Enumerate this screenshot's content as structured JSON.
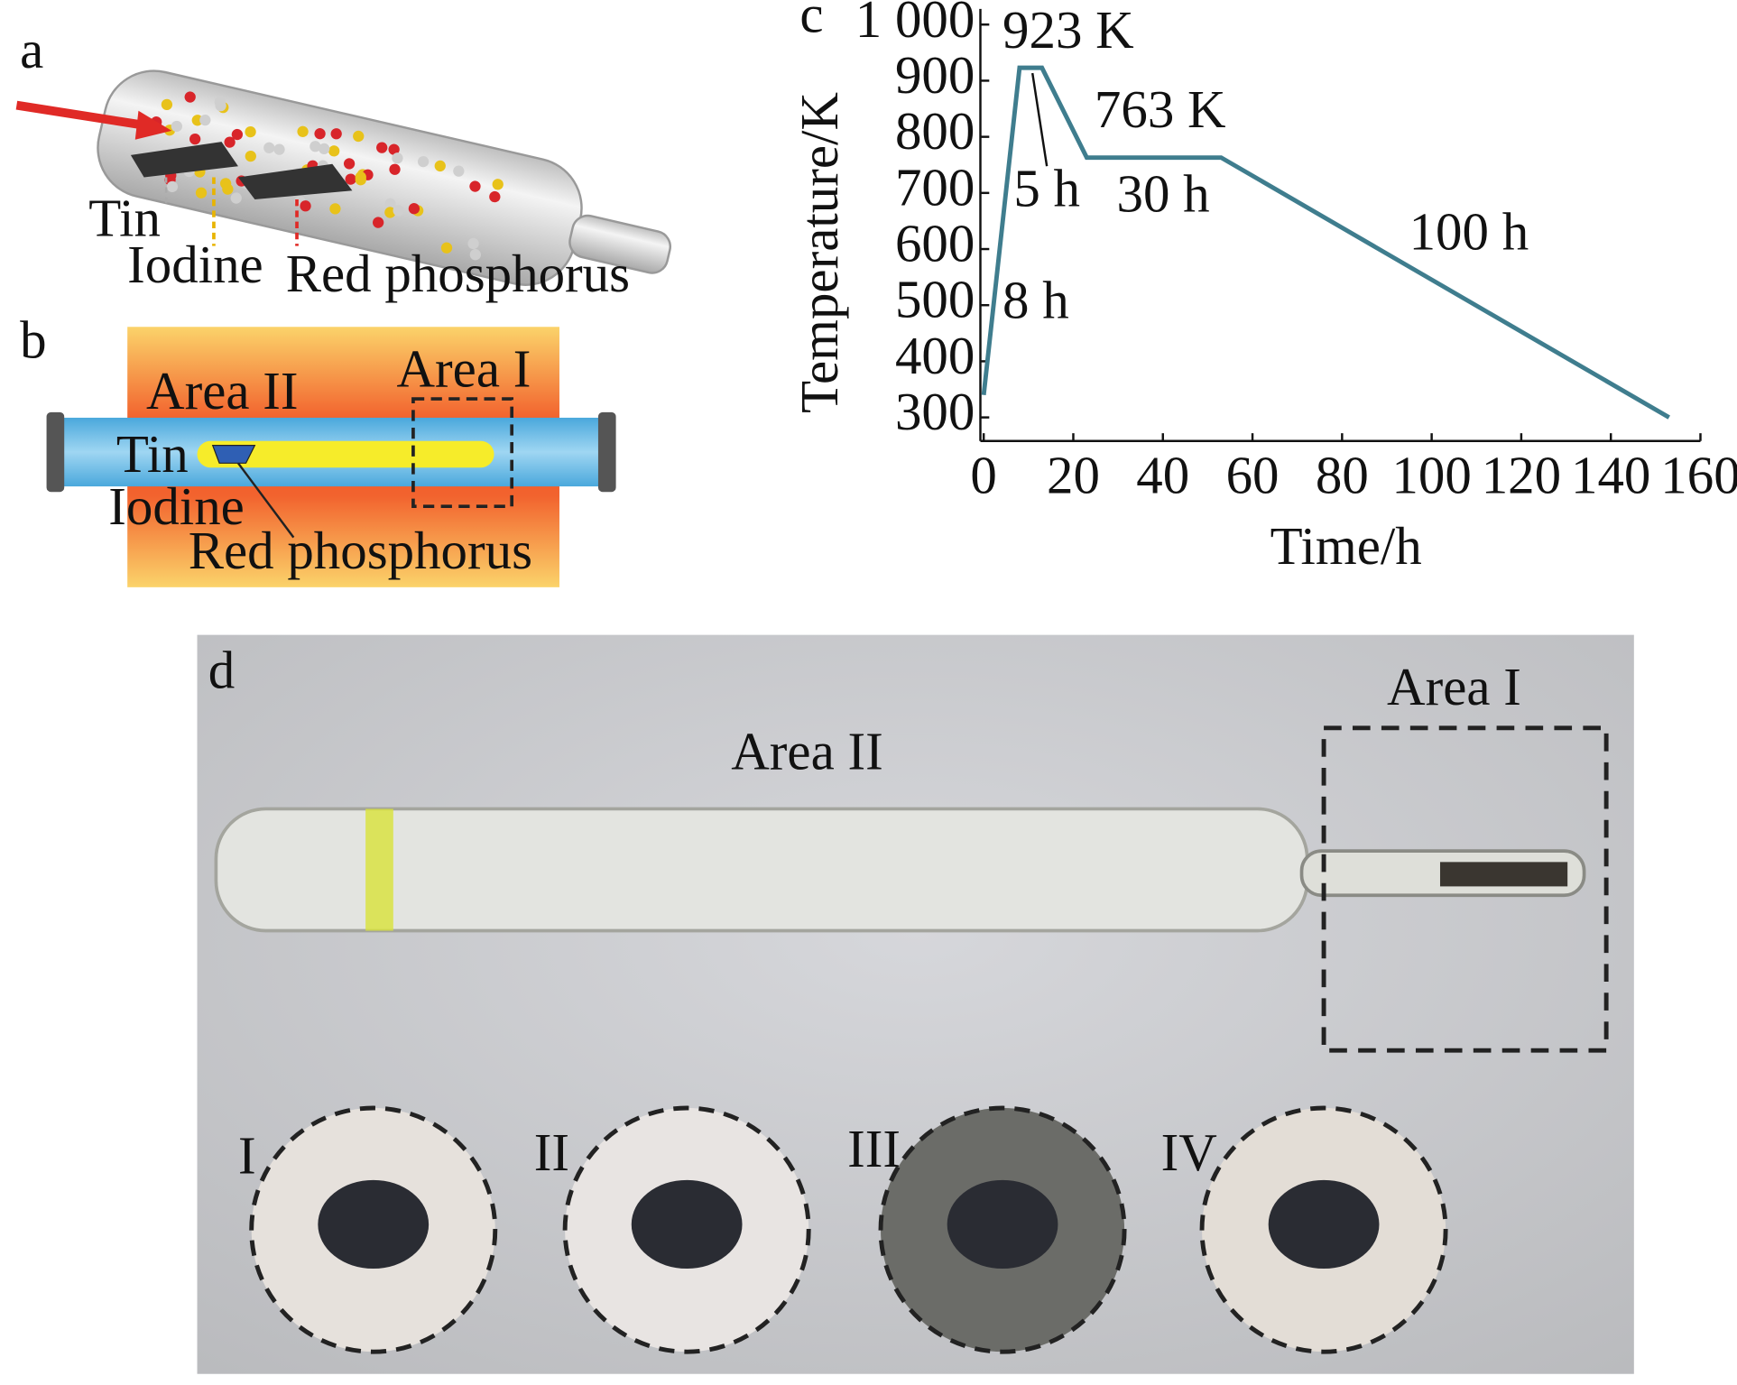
{
  "panels": {
    "a": {
      "label": "a",
      "texts": [
        "Tin",
        "Iodine",
        "Red phosphorus"
      ]
    },
    "b": {
      "label": "b",
      "texts": [
        "Area II",
        "Area I",
        "Tin",
        "Iodine",
        "Red phosphorus"
      ]
    },
    "d": {
      "label": "d",
      "texts": [
        "Area II",
        "Area I",
        "I",
        "II",
        "III",
        "IV"
      ]
    }
  },
  "chart_data": {
    "type": "line",
    "panel_label": "c",
    "x_label": "Time/h",
    "y_label": "Temperature/K",
    "x": [
      0,
      8,
      13,
      23,
      53,
      153
    ],
    "series": [
      {
        "color": "#3f7d8e",
        "values": [
          340,
          923,
          923,
          763,
          763,
          300
        ]
      }
    ],
    "xlim": [
      0,
      160
    ],
    "xticks": [
      0,
      20,
      40,
      60,
      80,
      100,
      120,
      140,
      160
    ],
    "ylim": [
      258,
      1028
    ],
    "yticks": [
      300,
      400,
      500,
      600,
      700,
      800,
      900,
      {
        "value": 1000,
        "label": "1 000"
      }
    ],
    "annotations": [
      "923 K",
      "763 K",
      "5 h",
      "30 h",
      "100 h",
      "8 h"
    ]
  }
}
